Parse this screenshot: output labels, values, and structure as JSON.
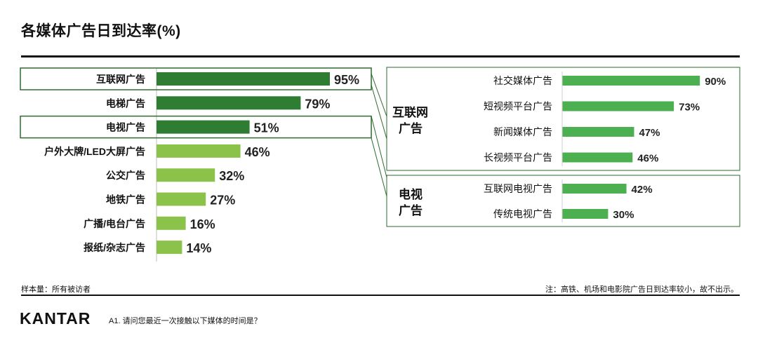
{
  "title": "各媒体广告日到达率(%)",
  "footnote_left": "样本量：所有被访者",
  "footnote_right": "注：高铁、机场和电影院广告日到达率较小，故不出示。",
  "brand": "KANTAR",
  "question": "A1. 请问您最近一次接触以下媒体的时间是？",
  "colors": {
    "dark_green": "#2e7d32",
    "light_green": "#8bc34a",
    "mid_green": "#4caf50",
    "frame_green": "#2e6b2e"
  },
  "chart_data": [
    {
      "type": "bar",
      "orientation": "horizontal",
      "categories": [
        "互联网广告",
        "电梯广告",
        "电视广告",
        "户外大牌/LED大屏广告",
        "公交广告",
        "地铁广告",
        "广播/电台广告",
        "报纸/杂志广告"
      ],
      "values": [
        95,
        79,
        51,
        46,
        32,
        27,
        16,
        14
      ],
      "value_suffix": "%",
      "highlighted": [
        "互联网广告",
        "电视广告"
      ],
      "xlim": [
        0,
        100
      ]
    },
    {
      "type": "bar",
      "orientation": "horizontal",
      "group": "互联网广告",
      "categories": [
        "社交媒体广告",
        "短视频平台广告",
        "新闻媒体广告",
        "长视频平台广告"
      ],
      "values": [
        90,
        73,
        47,
        46
      ],
      "value_suffix": "%",
      "xlim": [
        0,
        100
      ]
    },
    {
      "type": "bar",
      "orientation": "horizontal",
      "group": "电视广告",
      "categories": [
        "互联网电视广告",
        "传统电视广告"
      ],
      "values": [
        42,
        30
      ],
      "value_suffix": "%",
      "xlim": [
        0,
        100
      ]
    }
  ],
  "groups": {
    "internet_label_line1": "互联网",
    "internet_label_line2": "广告",
    "tv_label_line1": "电视",
    "tv_label_line2": "广告"
  }
}
